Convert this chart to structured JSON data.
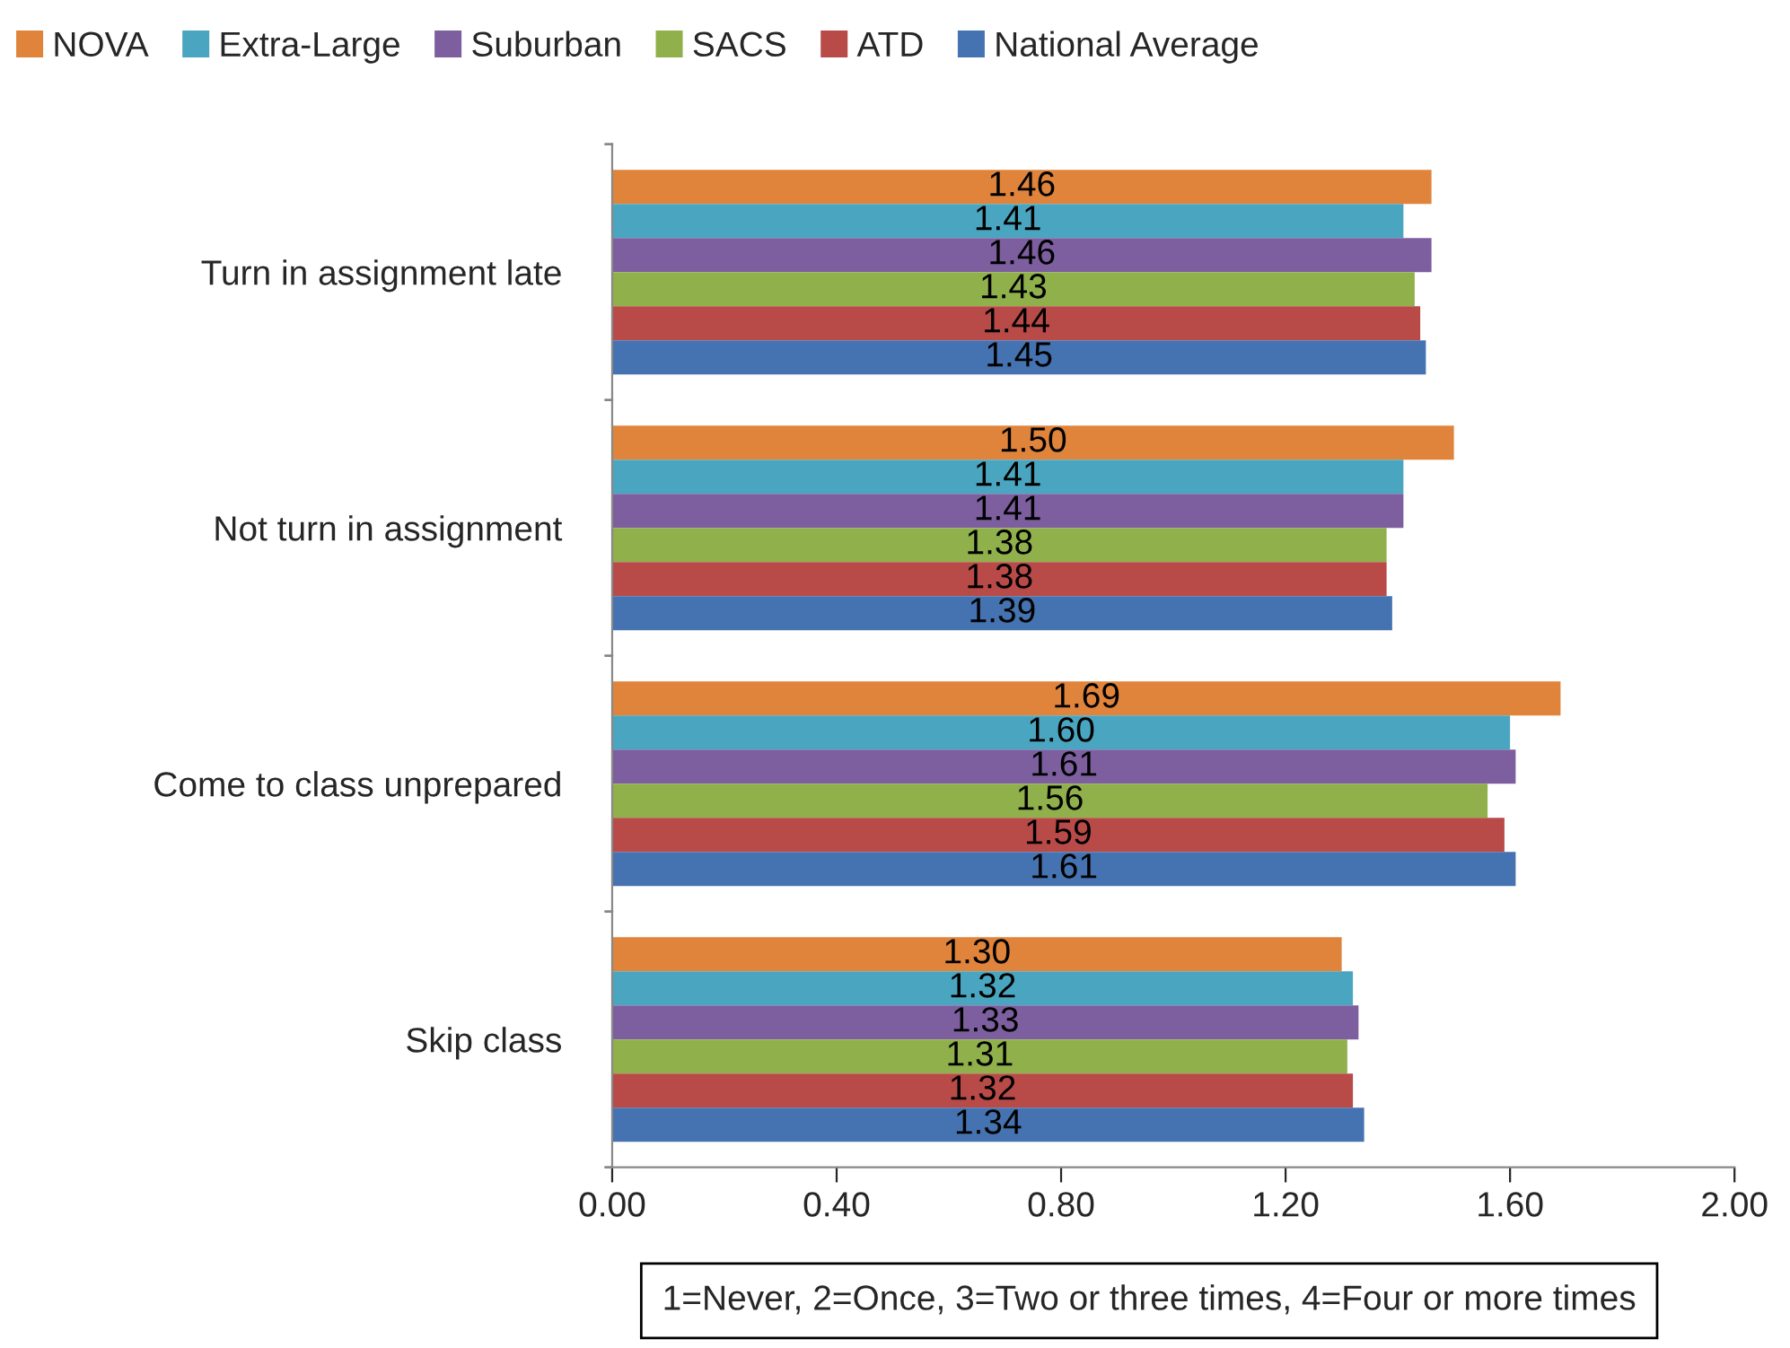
{
  "chart_data": {
    "type": "bar",
    "orientation": "horizontal",
    "categories": [
      "Turn in assignment late",
      "Not turn in assignment",
      "Come to class unprepared",
      "Skip class"
    ],
    "series": [
      {
        "name": "NOVA",
        "color": "#e0843c",
        "values": [
          1.46,
          1.5,
          1.69,
          1.3
        ],
        "value_labels": [
          "1.46",
          "1.50",
          "1.69",
          "1.30"
        ]
      },
      {
        "name": "Extra-Large",
        "color": "#4aa6c0",
        "values": [
          1.41,
          1.41,
          1.6,
          1.32
        ],
        "value_labels": [
          "1.41",
          "1.41",
          "1.60",
          "1.32"
        ]
      },
      {
        "name": "Suburban",
        "color": "#7d5fa0",
        "values": [
          1.46,
          1.41,
          1.61,
          1.33
        ],
        "value_labels": [
          "1.46",
          "1.41",
          "1.61",
          "1.33"
        ]
      },
      {
        "name": "SACS",
        "color": "#8fb04a",
        "values": [
          1.43,
          1.38,
          1.56,
          1.31
        ],
        "value_labels": [
          "1.43",
          "1.38",
          "1.56",
          "1.31"
        ]
      },
      {
        "name": "ATD",
        "color": "#b84a48",
        "values": [
          1.44,
          1.38,
          1.59,
          1.32
        ],
        "value_labels": [
          "1.44",
          "1.38",
          "1.59",
          "1.32"
        ]
      },
      {
        "name": "National Average",
        "color": "#4572b0",
        "values": [
          1.45,
          1.39,
          1.61,
          1.34
        ],
        "value_labels": [
          "1.45",
          "1.39",
          "1.61",
          "1.34"
        ]
      }
    ],
    "xlim": [
      0,
      2
    ],
    "xticks": [
      {
        "value": 0,
        "label": "0.00"
      },
      {
        "value": 0.4,
        "label": "0.40"
      },
      {
        "value": 0.8,
        "label": "0.80"
      },
      {
        "value": 1.2,
        "label": "1.20"
      },
      {
        "value": 1.6,
        "label": "1.60"
      },
      {
        "value": 2,
        "label": "2.00"
      }
    ],
    "grid": false,
    "legend": "top left",
    "annotations": [
      "1=Never, 2=Once, 3=Two or three times, 4=Four or more times"
    ]
  }
}
